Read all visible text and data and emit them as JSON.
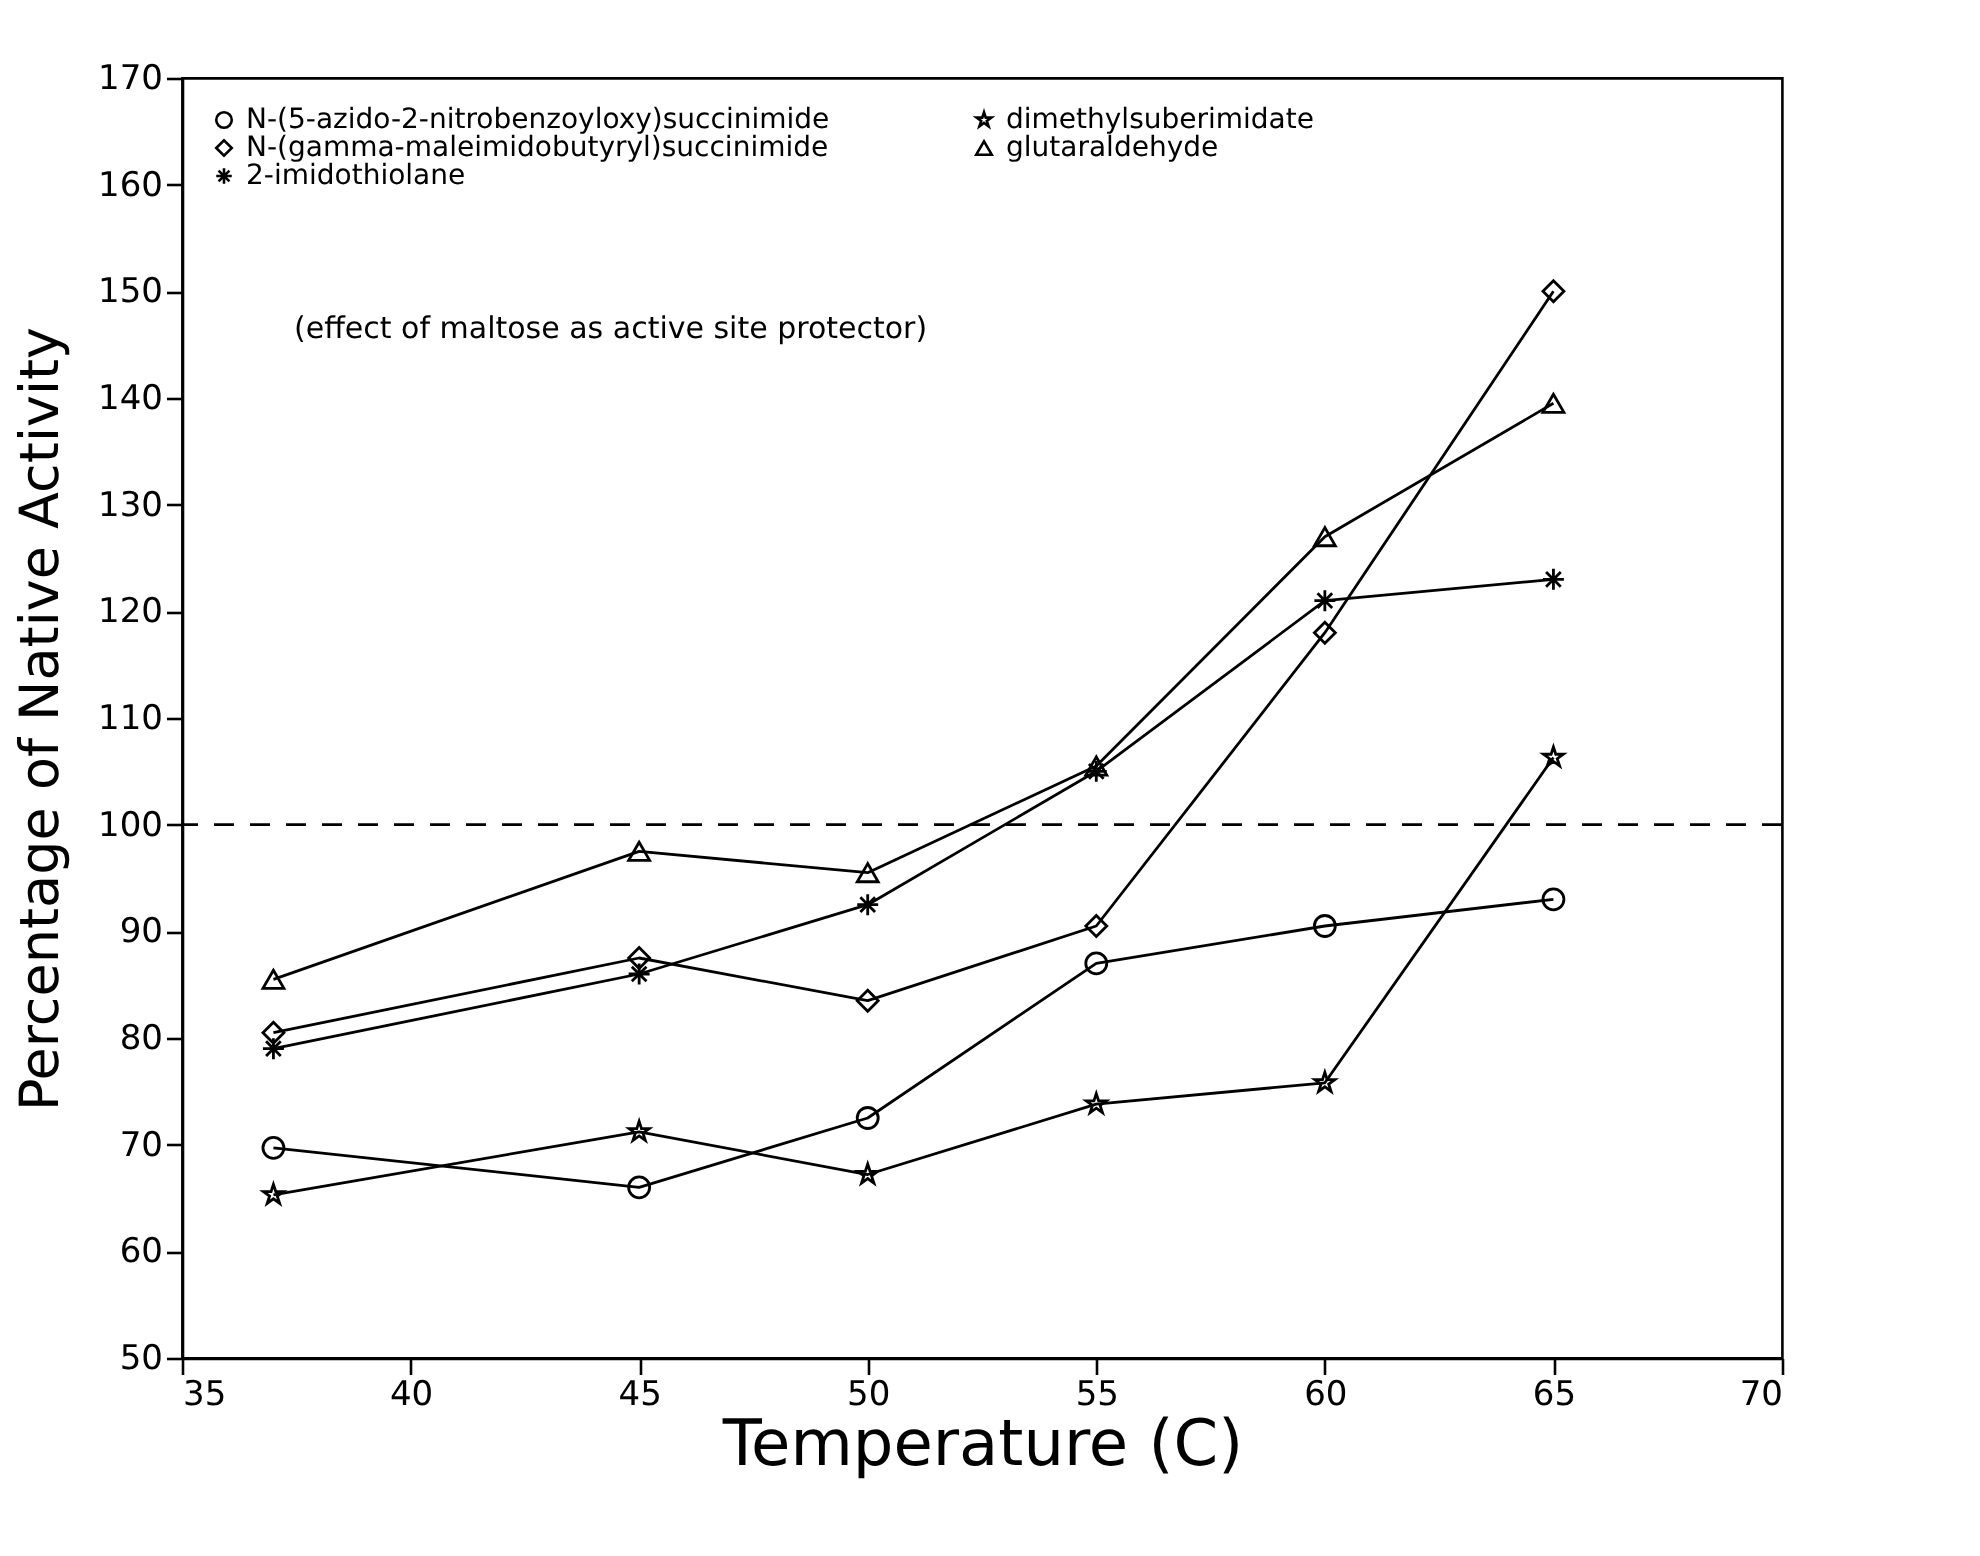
{
  "chart_data": {
    "type": "line",
    "xlabel": "Temperature (C)",
    "ylabel": "Percentage of Native Activity",
    "x": [
      37,
      45,
      50,
      55,
      60,
      65
    ],
    "xlim": [
      35,
      70
    ],
    "xticks": [
      35,
      40,
      45,
      50,
      55,
      60,
      65,
      70
    ],
    "ylim": [
      50,
      170
    ],
    "yticks": [
      50,
      60,
      70,
      80,
      90,
      100,
      110,
      120,
      130,
      140,
      150,
      160,
      170
    ],
    "grid": false,
    "legend": "top left",
    "line_style": "solid",
    "annotations": [
      "(effect of maltose as active site protector)"
    ],
    "ref_lines": [
      {
        "axis": "y",
        "value": 100,
        "line_style": "dashed",
        "color": "#000000"
      }
    ],
    "series": [
      {
        "name": "N-(5-azido-2-nitrobenzoyloxy)succinimide",
        "color": "#000000",
        "marker": "circle",
        "values": [
          69.7,
          66,
          72.5,
          87,
          90.5,
          93
        ]
      },
      {
        "name": "N-(gamma-maleimidobutyryl)succinimide",
        "color": "#000000",
        "marker": "diamond",
        "values": [
          80.5,
          87.5,
          83.5,
          90.5,
          118,
          150
        ]
      },
      {
        "name": "2-imidothiolane",
        "color": "#000000",
        "marker": "cross",
        "values": [
          79,
          86,
          92.5,
          105,
          121,
          123
        ]
      },
      {
        "name": "dimethylsuberimidate",
        "color": "#000000",
        "marker": "star",
        "values": [
          65.3,
          71.2,
          67.2,
          73.8,
          75.8,
          106.3
        ]
      },
      {
        "name": "glutaraldehyde",
        "color": "#000000",
        "marker": "triangle",
        "values": [
          85.5,
          97.5,
          95.5,
          105.5,
          127,
          139.5
        ]
      }
    ]
  }
}
